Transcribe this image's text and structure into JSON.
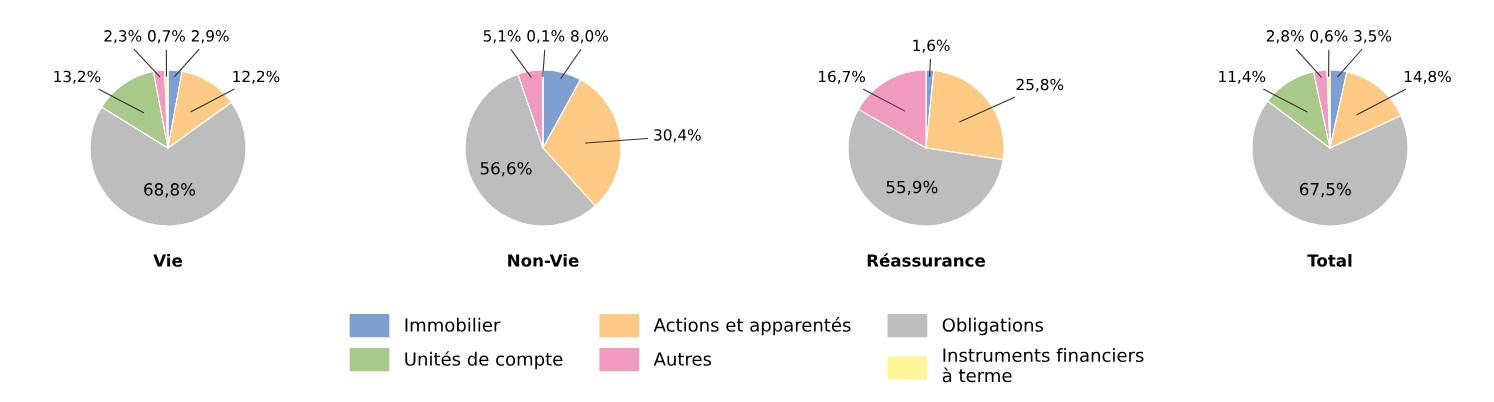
{
  "chart_data": [
    {
      "type": "pie",
      "title": "Vie",
      "categories": [
        "Immobilier",
        "Actions et apparentés",
        "Obligations",
        "Unités de compte",
        "Autres",
        "Instruments financiers\nà terme"
      ],
      "values": [
        2.9,
        12.2,
        68.8,
        13.2,
        2.3,
        0.7
      ],
      "value_labels": [
        "2,9%",
        "12,2%",
        "68,8%",
        "13,2%",
        "2,3%",
        "0,7%"
      ],
      "colors": [
        "#7f9fd0",
        "#fdca85",
        "#bdbdbe",
        "#a9c98a",
        "#f09ac0",
        "#fef59a"
      ],
      "legend": "bottom"
    },
    {
      "type": "pie",
      "title": "Non-Vie",
      "categories": [
        null,
        null,
        null,
        null,
        null,
        null
      ],
      "values": [
        8.0,
        30.4,
        56.6,
        null,
        5.1,
        0.1
      ],
      "value_labels": [
        "8,0%",
        "30,4%",
        "56,6%",
        null,
        "5,1%",
        "0,1%"
      ],
      "colors": [
        "#7f9fd0",
        "#fdca85",
        "#bdbdbe",
        "#a9c98a",
        "#f09ac0",
        "#fef59a"
      ]
    },
    {
      "type": "pie",
      "title": "Réassurance",
      "categories": [
        null,
        null,
        null,
        null,
        null,
        null
      ],
      "values": [
        1.6,
        25.8,
        55.9,
        null,
        16.7,
        null
      ],
      "value_labels": [
        "1,6%",
        "25,8%",
        "55,9%",
        null,
        "16,7%",
        null
      ],
      "colors": [
        "#7f9fd0",
        "#fdca85",
        "#bdbdbe",
        "#a9c98a",
        "#f09ac0",
        "#fef59a"
      ]
    },
    {
      "type": "pie",
      "title": "Total",
      "categories": [
        null,
        null,
        null,
        null,
        null,
        null
      ],
      "values": [
        3.5,
        14.8,
        67.5,
        11.4,
        2.8,
        0.6
      ],
      "value_labels": [
        "3,5%",
        "14,8%",
        "67,5%",
        "11,4%",
        "2,8%",
        "0,6%"
      ],
      "colors": [
        "#7f9fd0",
        "#fdca85",
        "#bdbdbe",
        "#a9c98a",
        "#f09ac0",
        "#fef59a"
      ]
    }
  ]
}
